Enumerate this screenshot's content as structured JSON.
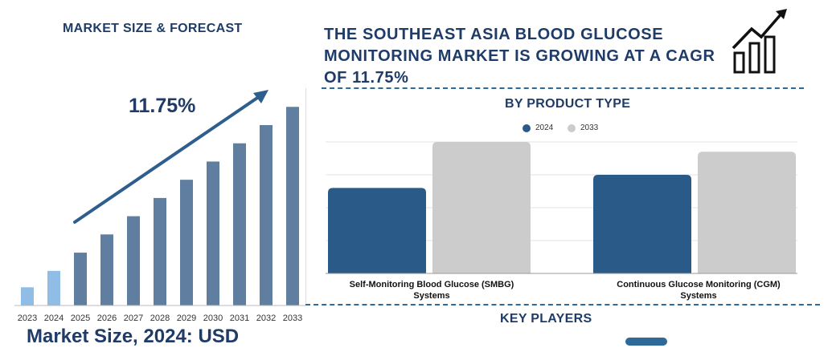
{
  "colors": {
    "navy": "#1f3b68",
    "bar_light": "#8fbde6",
    "bar_dark": "#5f7ea0",
    "series_2024": "#2a5a88",
    "series_2033": "#cccccc"
  },
  "left_panel": {
    "title": "MARKET SIZE & FORECAST",
    "cagr_label": "11.75%",
    "market_size_text": "Market Size, 2024: USD"
  },
  "header": {
    "headline": "THE SOUTHEAST ASIA BLOOD GLUCOSE MONITORING MARKET IS GROWING AT A CAGR OF 11.75%",
    "icon": "growth-chart-icon"
  },
  "right_panel": {
    "title": "BY PRODUCT TYPE",
    "key_players_title": "KEY PLAYERS"
  },
  "chart_data": [
    {
      "type": "bar",
      "categories": [
        "2023",
        "2024",
        "2025",
        "2026",
        "2027",
        "2028",
        "2029",
        "2030",
        "2031",
        "2032",
        "2033"
      ],
      "values": [
        1.0,
        1.9,
        2.9,
        3.9,
        4.9,
        5.9,
        6.9,
        7.9,
        8.9,
        9.9,
        10.9
      ],
      "highlighted": [
        "2023",
        "2024"
      ],
      "annotation": "11.75%",
      "ylim": [
        0,
        11
      ],
      "grid": false
    },
    {
      "type": "bar",
      "categories": [
        "Self-Monitoring Blood Glucose (SMBG) Systems",
        "Continuous Glucose Monitoring (CGM) Systems"
      ],
      "series": [
        {
          "name": "2024",
          "values": [
            2.6,
            3.0
          ]
        },
        {
          "name": "2033",
          "values": [
            4.0,
            3.7
          ]
        }
      ],
      "ylim": [
        0,
        4.0
      ],
      "grid": true,
      "legend": "top-center"
    }
  ]
}
